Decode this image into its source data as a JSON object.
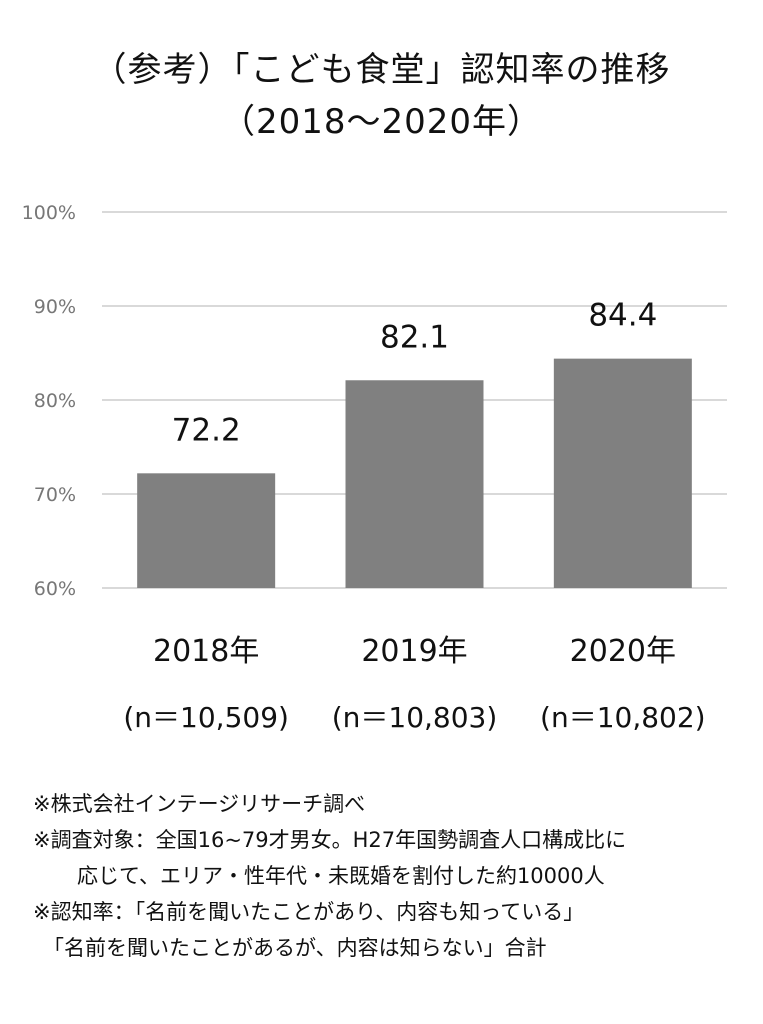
{
  "title": {
    "line1": "（参考）「こども食堂」認知率の推移",
    "line2": "（2018～2020年）"
  },
  "chart_data": {
    "type": "bar",
    "categories": [
      "2018年",
      "2019年",
      "2020年"
    ],
    "sample_sizes": [
      "(n＝10,509)",
      "(n＝10,803)",
      "(n＝10,802)"
    ],
    "values": [
      72.2,
      82.1,
      84.4
    ],
    "value_labels": [
      "72.2",
      "82.1",
      "84.4"
    ],
    "ylim": [
      60,
      100
    ],
    "yticks": [
      60,
      70,
      80,
      90,
      100
    ],
    "ytick_labels": [
      "60%",
      "70%",
      "80%",
      "90%",
      "100%"
    ],
    "grid": true,
    "bar_color": "#808080",
    "grid_color": "#d9d9d9"
  },
  "notes": [
    "※株式会社インテージリサーチ調べ",
    "※調査対象：全国16~79才男女。H27年国勢調査人口構成比に",
    "応じて、エリア・性年代・未既婚を割付した約10000人",
    "※認知率：「名前を聞いたことがあり、内容も知っている」",
    "「名前を聞いたことがあるが、内容は知らない」合計"
  ]
}
